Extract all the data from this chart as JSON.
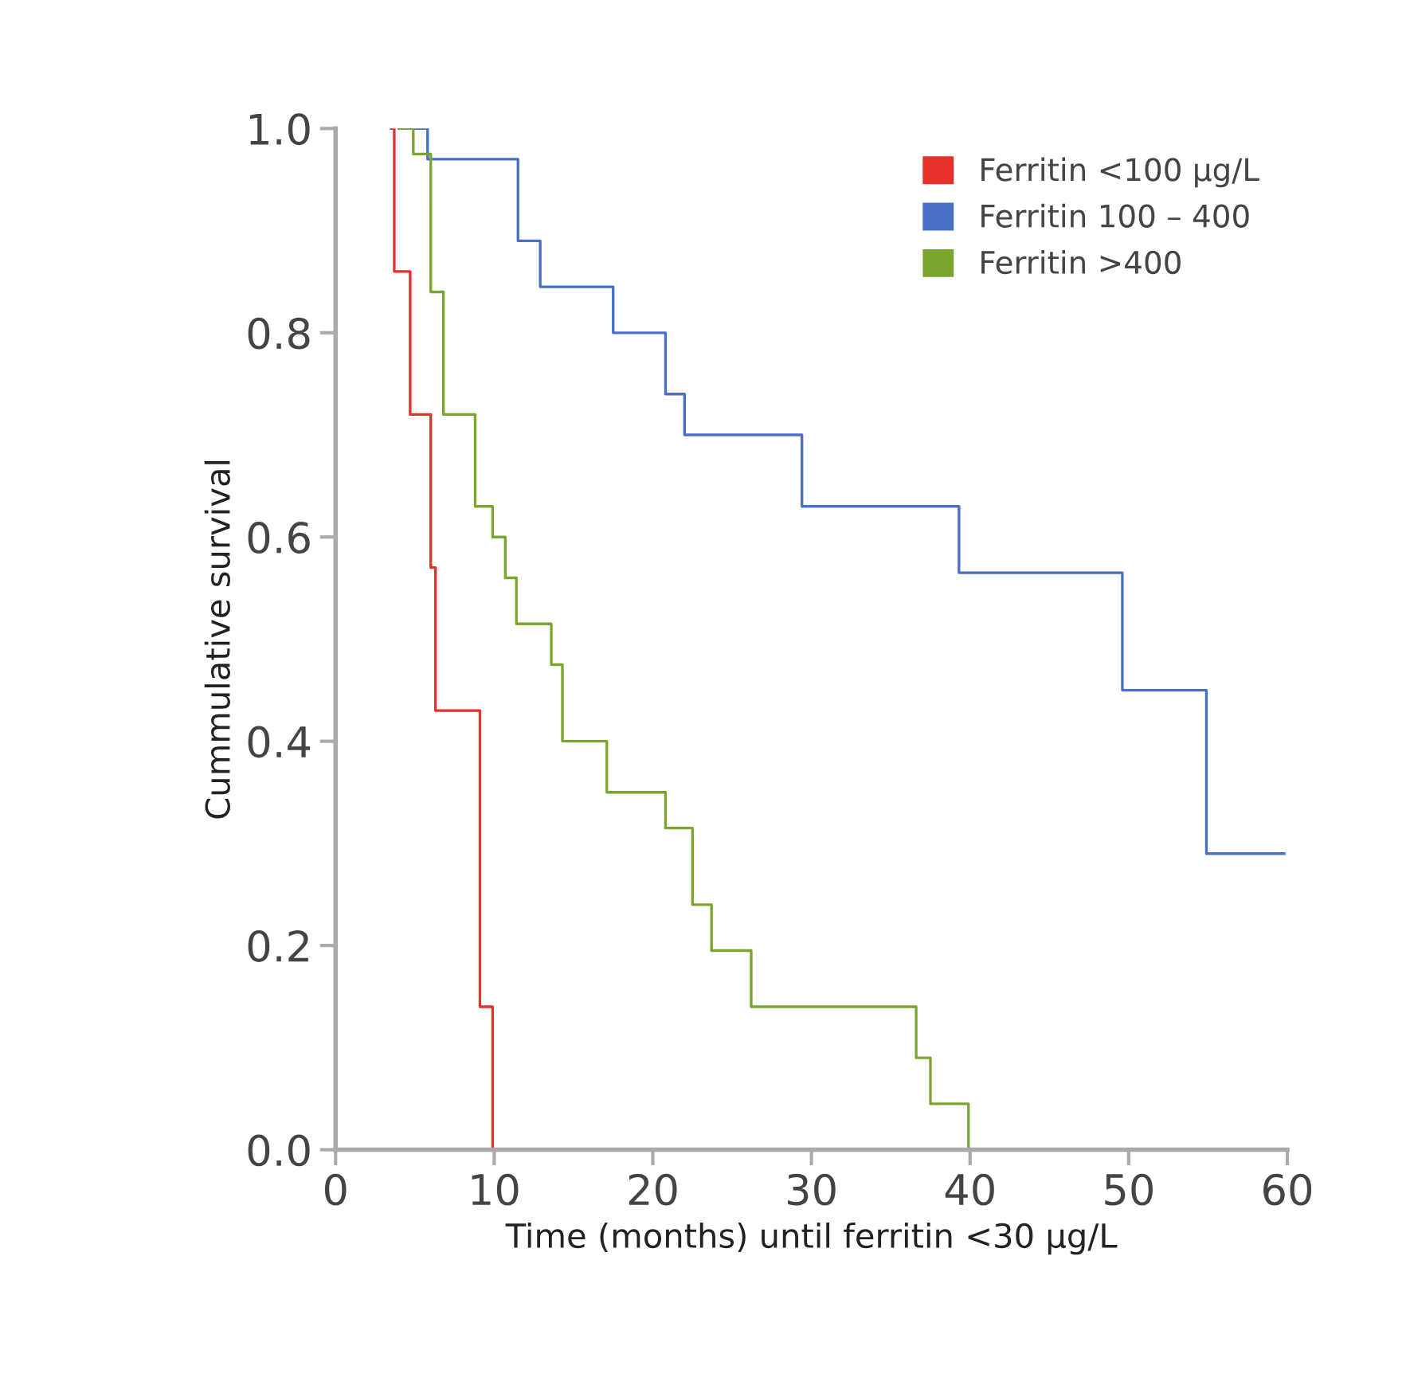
{
  "chart_data": {
    "type": "step",
    "xlabel": "Time (months) until ferritin <30 μg/L",
    "ylabel": "Cummulative survival",
    "xlim": [
      0,
      60
    ],
    "ylim": [
      0,
      1
    ],
    "xticks": [
      0,
      10,
      20,
      30,
      40,
      50,
      60
    ],
    "yticks": [
      {
        "value": 0,
        "label": "0.0"
      },
      0.2,
      0.4,
      0.6,
      0.8,
      {
        "value": 1,
        "label": "1.0"
      }
    ],
    "grid": false,
    "legend": "top right",
    "series": [
      {
        "name": "Ferritin <100 μg/L",
        "color": "#e8302a",
        "x": [
          3.5,
          3.7,
          4.7,
          6.0,
          6.3,
          9.1,
          9.9
        ],
        "values": [
          1.0,
          0.86,
          0.72,
          0.57,
          0.43,
          0.14,
          0.0
        ]
      },
      {
        "name": "Ferritin 100 – 400",
        "color": "#4a6fc6",
        "x": [
          4.0,
          5.8,
          11.5,
          12.9,
          17.5,
          20.8,
          22.0,
          29.4,
          39.3,
          49.6,
          54.9,
          59.8
        ],
        "values": [
          1.0,
          0.97,
          0.89,
          0.845,
          0.8,
          0.74,
          0.7,
          0.63,
          0.565,
          0.45,
          0.29,
          0.29
        ]
      },
      {
        "name": "Ferritin >400",
        "color": "#7aa630",
        "x": [
          4.0,
          4.9,
          6.0,
          6.8,
          8.8,
          9.9,
          10.7,
          11.4,
          13.6,
          14.3,
          17.1,
          20.8,
          22.5,
          23.7,
          26.2,
          36.6,
          37.5,
          39.9
        ],
        "values": [
          1.0,
          0.975,
          0.84,
          0.72,
          0.63,
          0.6,
          0.56,
          0.515,
          0.475,
          0.4,
          0.35,
          0.315,
          0.24,
          0.195,
          0.14,
          0.09,
          0.045,
          0.0
        ]
      }
    ]
  }
}
